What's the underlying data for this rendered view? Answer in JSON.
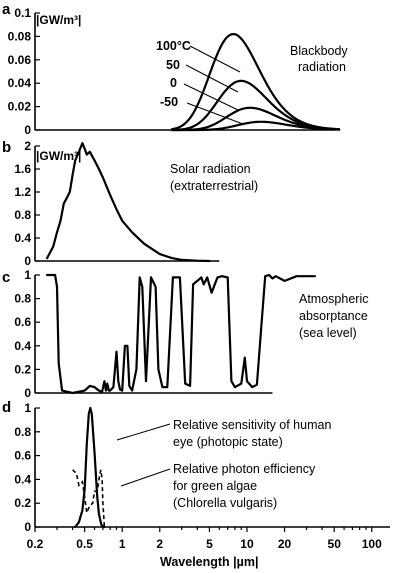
{
  "chart_data": [
    {
      "panel": "a",
      "type": "line",
      "unit_label": "|GW/m³|",
      "xscale": "log",
      "xlim": [
        0.2,
        140
      ],
      "ylim": [
        0,
        0.1
      ],
      "yticks": [
        "0",
        "0.02",
        "0.04",
        "0.06",
        "0.08",
        "0.1"
      ],
      "annotation_lines": [
        "Blackbody",
        "radiation"
      ],
      "series": [
        {
          "name": "100°C",
          "temp_c": 100,
          "peak_value": 0.082
        },
        {
          "name": "50",
          "temp_c": 50,
          "peak_value": 0.042
        },
        {
          "name": "0",
          "temp_c": 0,
          "peak_value": 0.019
        },
        {
          "name": "-50",
          "temp_c": -50,
          "peak_value": 0.007
        }
      ]
    },
    {
      "panel": "b",
      "type": "line",
      "unit_label": "|GW/m³|",
      "xscale": "log",
      "xlim": [
        0.2,
        140
      ],
      "ylim": [
        0,
        2
      ],
      "yticks": [
        "0",
        "0.4",
        "0.8",
        "1.2",
        "1.6",
        "2"
      ],
      "annotation_lines": [
        "Solar radiation",
        "(extraterrestrial)"
      ],
      "series": [
        {
          "x": [
            0.25,
            0.28,
            0.3,
            0.32,
            0.34,
            0.36,
            0.38,
            0.4,
            0.42,
            0.45,
            0.48,
            0.5,
            0.52,
            0.55,
            0.6,
            0.65,
            0.7,
            0.8,
            0.9,
            1.0,
            1.2,
            1.5,
            2.0,
            2.5,
            3.0,
            4.0,
            5.0
          ],
          "y": [
            0.05,
            0.25,
            0.5,
            0.7,
            1.0,
            1.1,
            1.2,
            1.5,
            1.75,
            1.9,
            2.05,
            1.95,
            1.85,
            1.9,
            1.75,
            1.6,
            1.45,
            1.15,
            0.9,
            0.7,
            0.5,
            0.3,
            0.12,
            0.05,
            0.02,
            0.005,
            0.0
          ]
        }
      ]
    },
    {
      "panel": "c",
      "type": "line",
      "xscale": "log",
      "xlim": [
        0.2,
        140
      ],
      "ylim": [
        0,
        1
      ],
      "yticks": [
        "0",
        "0.2",
        "0.4",
        "0.6",
        "0.8",
        "1"
      ],
      "annotation_lines": [
        "Atmospheric",
        "absorptance",
        "(sea level)"
      ],
      "series": [
        {
          "x": [
            0.25,
            0.29,
            0.3,
            0.31,
            0.33,
            0.4,
            0.5,
            0.55,
            0.6,
            0.65,
            0.69,
            0.72,
            0.74,
            0.76,
            0.78,
            0.8,
            0.85,
            0.9,
            0.93,
            0.96,
            1.0,
            1.05,
            1.1,
            1.14,
            1.2,
            1.3,
            1.38,
            1.45,
            1.55,
            1.7,
            1.85,
            1.95,
            2.1,
            2.3,
            2.55,
            2.7,
            2.9,
            3.2,
            3.5,
            3.7,
            4.0,
            4.3,
            4.5,
            4.8,
            5.2,
            5.8,
            6.3,
            7.0,
            7.5,
            8.0,
            9.0,
            9.6,
            10.0,
            11.0,
            12.0,
            13.0,
            14.0,
            15.0,
            16.0,
            17.0,
            20.0,
            25.0,
            30.0,
            35.0
          ],
          "y": [
            1.0,
            1.0,
            0.9,
            0.25,
            0.02,
            0.0,
            0.02,
            0.06,
            0.05,
            0.02,
            0.01,
            0.1,
            0.02,
            0.08,
            0.02,
            0.02,
            0.05,
            0.35,
            0.1,
            0.03,
            0.02,
            0.4,
            0.4,
            0.06,
            0.02,
            0.2,
            0.98,
            0.9,
            0.1,
            0.98,
            0.9,
            0.2,
            0.05,
            0.05,
            0.98,
            0.98,
            0.98,
            0.08,
            0.06,
            0.92,
            0.95,
            0.98,
            0.92,
            0.98,
            0.85,
            0.98,
            0.99,
            0.98,
            0.1,
            0.05,
            0.08,
            0.3,
            0.1,
            0.05,
            0.07,
            0.55,
            0.99,
            1.0,
            0.97,
            0.99,
            0.95,
            0.99,
            0.99,
            0.99
          ]
        }
      ]
    },
    {
      "panel": "d",
      "type": "line",
      "xscale": "log",
      "xlim": [
        0.2,
        140
      ],
      "ylim": [
        0,
        1
      ],
      "yticks": [
        "0",
        "0.2",
        "0.4",
        "0.6",
        "0.8",
        "1"
      ],
      "xticks": [
        "0.2",
        "0.5",
        "1",
        "2",
        "5",
        "10",
        "20",
        "50",
        "100"
      ],
      "xlabel": "Wavelength |µm|",
      "series": [
        {
          "name": "Relative sensitivity of human eye (photopic state)",
          "annotation_lines": [
            "Relative sensitivity of human",
            "eye (photopic state)"
          ],
          "style": "solid",
          "x": [
            0.42,
            0.45,
            0.48,
            0.5,
            0.52,
            0.54,
            0.555,
            0.57,
            0.6,
            0.63,
            0.65,
            0.68,
            0.7,
            0.72
          ],
          "y": [
            0.0,
            0.04,
            0.14,
            0.32,
            0.7,
            0.95,
            1.0,
            0.95,
            0.63,
            0.26,
            0.11,
            0.02,
            0.004,
            0.0
          ]
        },
        {
          "name": "Relative photon efficiency for green algae (Chlorella vulgaris)",
          "annotation_lines": [
            "Relative photon efficiency",
            "for green algae",
            "(Chlorella vulgaris)"
          ],
          "style": "dashed",
          "x": [
            0.4,
            0.43,
            0.45,
            0.48,
            0.5,
            0.52,
            0.55,
            0.58,
            0.6,
            0.63,
            0.66,
            0.675,
            0.69,
            0.7,
            0.72
          ],
          "y": [
            0.48,
            0.45,
            0.35,
            0.38,
            0.25,
            0.12,
            0.18,
            0.2,
            0.3,
            0.3,
            0.44,
            0.48,
            0.4,
            0.2,
            0.0
          ]
        }
      ]
    }
  ]
}
